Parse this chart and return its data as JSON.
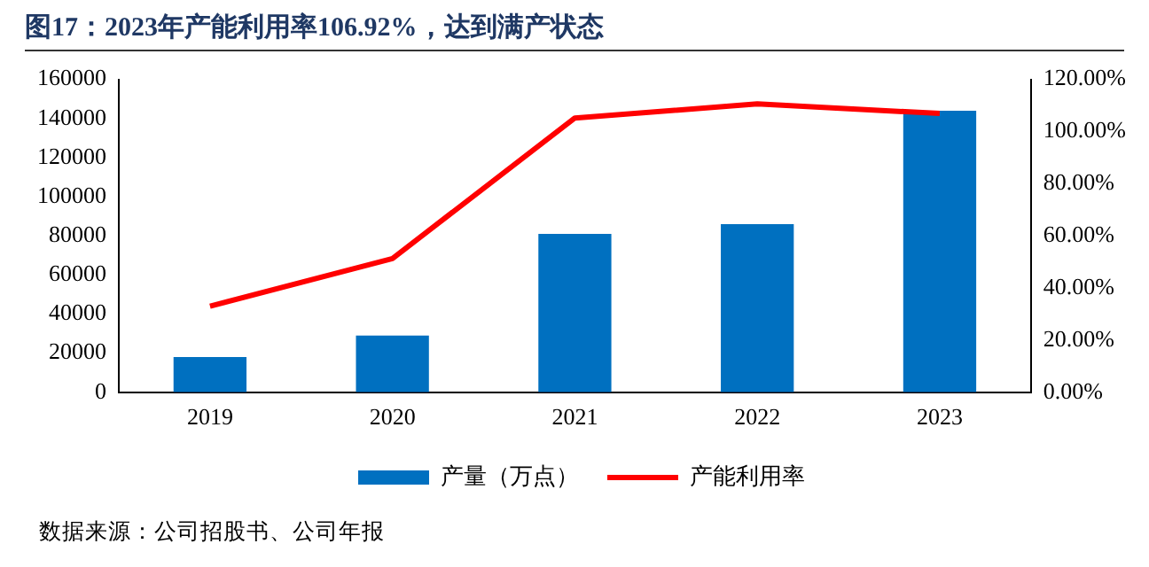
{
  "chart_data": {
    "type": "bar",
    "title": "图17：2023年产能利用率106.92%，达到满产状态",
    "categories": [
      "2019",
      "2020",
      "2021",
      "2022",
      "2023"
    ],
    "series": [
      {
        "name": "产量（万点）",
        "color": "#0070c0",
        "values": [
          18000,
          29000,
          81000,
          86000,
          144000
        ]
      },
      {
        "name": "产能利用率",
        "type": "line",
        "axis": "y2",
        "color": "#ff0000",
        "values": [
          33,
          51.3,
          105.2,
          110.6,
          106.92
        ]
      }
    ],
    "ylim": [
      0,
      160000
    ],
    "yticks": [
      0,
      20000,
      40000,
      60000,
      80000,
      100000,
      120000,
      140000,
      160000
    ],
    "y2lim": [
      0,
      120
    ],
    "y2ticks": [
      {
        "value": 0,
        "label": "0.00%"
      },
      {
        "value": 20,
        "label": "20.00%"
      },
      {
        "value": 40,
        "label": "40.00%"
      },
      {
        "value": 60,
        "label": "60.00%"
      },
      {
        "value": 80,
        "label": "80.00%"
      },
      {
        "value": 100,
        "label": "100.00%"
      },
      {
        "value": 120,
        "label": "120.00%"
      }
    ],
    "grid": false,
    "legend": "bottom",
    "marker": "none",
    "annotations": [
      "数据来源：公司招股书、公司年报"
    ]
  }
}
